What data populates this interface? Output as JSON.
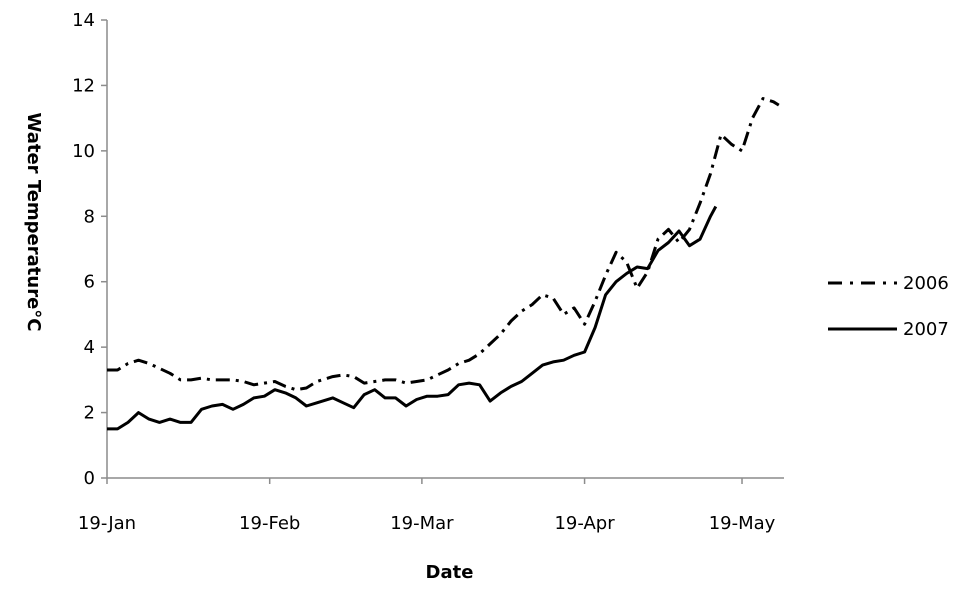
{
  "chart_data": {
    "type": "line",
    "title": "",
    "xlabel": "Date",
    "ylabel": "Water Temperature°C",
    "x_axis": {
      "type": "date",
      "range": [
        "2000-01-19",
        "2000-05-27"
      ],
      "ticks": [
        {
          "date": "2000-01-19",
          "label": "19-Jan"
        },
        {
          "date": "2000-02-19",
          "label": "19-Feb"
        },
        {
          "date": "2000-03-19",
          "label": "19-Mar"
        },
        {
          "date": "2000-04-19",
          "label": "19-Apr"
        },
        {
          "date": "2000-05-19",
          "label": "19-May"
        }
      ]
    },
    "y_axis": {
      "range": [
        0,
        14
      ],
      "ticks": [
        0,
        2,
        4,
        6,
        8,
        10,
        12,
        14
      ]
    },
    "grid": false,
    "legend": {
      "position": "right"
    },
    "series": [
      {
        "name": "2006",
        "style": "dash-dot",
        "color": "#000000",
        "points": [
          [
            "2000-01-19",
            3.3
          ],
          [
            "2000-01-21",
            3.3
          ],
          [
            "2000-01-23",
            3.5
          ],
          [
            "2000-01-25",
            3.6
          ],
          [
            "2000-01-27",
            3.5
          ],
          [
            "2000-01-29",
            3.35
          ],
          [
            "2000-01-31",
            3.2
          ],
          [
            "2000-02-02",
            3.0
          ],
          [
            "2000-02-04",
            3.0
          ],
          [
            "2000-02-06",
            3.05
          ],
          [
            "2000-02-08",
            3.0
          ],
          [
            "2000-02-10",
            3.0
          ],
          [
            "2000-02-12",
            3.0
          ],
          [
            "2000-02-14",
            2.95
          ],
          [
            "2000-02-16",
            2.85
          ],
          [
            "2000-02-18",
            2.9
          ],
          [
            "2000-02-20",
            2.95
          ],
          [
            "2000-02-22",
            2.8
          ],
          [
            "2000-02-24",
            2.7
          ],
          [
            "2000-02-26",
            2.75
          ],
          [
            "2000-02-28",
            2.95
          ],
          [
            "2000-03-02",
            3.1
          ],
          [
            "2000-03-04",
            3.15
          ],
          [
            "2000-03-06",
            3.1
          ],
          [
            "2000-03-08",
            2.9
          ],
          [
            "2000-03-10",
            2.95
          ],
          [
            "2000-03-12",
            3.0
          ],
          [
            "2000-03-14",
            3.0
          ],
          [
            "2000-03-16",
            2.9
          ],
          [
            "2000-03-18",
            2.95
          ],
          [
            "2000-03-20",
            3.0
          ],
          [
            "2000-03-22",
            3.15
          ],
          [
            "2000-03-24",
            3.3
          ],
          [
            "2000-03-26",
            3.5
          ],
          [
            "2000-03-28",
            3.6
          ],
          [
            "2000-03-30",
            3.8
          ],
          [
            "2000-04-01",
            4.1
          ],
          [
            "2000-04-03",
            4.4
          ],
          [
            "2000-04-05",
            4.8
          ],
          [
            "2000-04-07",
            5.1
          ],
          [
            "2000-04-09",
            5.3
          ],
          [
            "2000-04-11",
            5.6
          ],
          [
            "2000-04-13",
            5.5
          ],
          [
            "2000-04-15",
            5.0
          ],
          [
            "2000-04-17",
            5.2
          ],
          [
            "2000-04-19",
            4.7
          ],
          [
            "2000-04-21",
            5.4
          ],
          [
            "2000-04-23",
            6.2
          ],
          [
            "2000-04-25",
            6.9
          ],
          [
            "2000-04-27",
            6.6
          ],
          [
            "2000-04-29",
            5.8
          ],
          [
            "2000-05-01",
            6.3
          ],
          [
            "2000-05-03",
            7.3
          ],
          [
            "2000-05-05",
            7.6
          ],
          [
            "2000-05-07",
            7.2
          ],
          [
            "2000-05-09",
            7.6
          ],
          [
            "2000-05-11",
            8.4
          ],
          [
            "2000-05-13",
            9.3
          ],
          [
            "2000-05-15",
            10.5
          ],
          [
            "2000-05-17",
            10.2
          ],
          [
            "2000-05-19",
            10.0
          ],
          [
            "2000-05-21",
            11.0
          ],
          [
            "2000-05-23",
            11.6
          ],
          [
            "2000-05-25",
            11.5
          ],
          [
            "2000-05-26",
            11.4
          ]
        ]
      },
      {
        "name": "2007",
        "style": "solid",
        "color": "#000000",
        "points": [
          [
            "2000-01-19",
            1.5
          ],
          [
            "2000-01-21",
            1.5
          ],
          [
            "2000-01-23",
            1.7
          ],
          [
            "2000-01-25",
            2.0
          ],
          [
            "2000-01-27",
            1.8
          ],
          [
            "2000-01-29",
            1.7
          ],
          [
            "2000-01-31",
            1.8
          ],
          [
            "2000-02-02",
            1.7
          ],
          [
            "2000-02-04",
            1.7
          ],
          [
            "2000-02-06",
            2.1
          ],
          [
            "2000-02-08",
            2.2
          ],
          [
            "2000-02-10",
            2.25
          ],
          [
            "2000-02-12",
            2.1
          ],
          [
            "2000-02-14",
            2.25
          ],
          [
            "2000-02-16",
            2.45
          ],
          [
            "2000-02-18",
            2.5
          ],
          [
            "2000-02-20",
            2.7
          ],
          [
            "2000-02-22",
            2.6
          ],
          [
            "2000-02-24",
            2.45
          ],
          [
            "2000-02-26",
            2.2
          ],
          [
            "2000-02-28",
            2.3
          ],
          [
            "2000-03-02",
            2.45
          ],
          [
            "2000-03-04",
            2.3
          ],
          [
            "2000-03-06",
            2.15
          ],
          [
            "2000-03-08",
            2.55
          ],
          [
            "2000-03-10",
            2.7
          ],
          [
            "2000-03-12",
            2.45
          ],
          [
            "2000-03-14",
            2.45
          ],
          [
            "2000-03-16",
            2.2
          ],
          [
            "2000-03-18",
            2.4
          ],
          [
            "2000-03-20",
            2.5
          ],
          [
            "2000-03-22",
            2.5
          ],
          [
            "2000-03-24",
            2.55
          ],
          [
            "2000-03-26",
            2.85
          ],
          [
            "2000-03-28",
            2.9
          ],
          [
            "2000-03-30",
            2.85
          ],
          [
            "2000-04-01",
            2.35
          ],
          [
            "2000-04-03",
            2.6
          ],
          [
            "2000-04-05",
            2.8
          ],
          [
            "2000-04-07",
            2.95
          ],
          [
            "2000-04-09",
            3.2
          ],
          [
            "2000-04-11",
            3.45
          ],
          [
            "2000-04-13",
            3.55
          ],
          [
            "2000-04-15",
            3.6
          ],
          [
            "2000-04-17",
            3.75
          ],
          [
            "2000-04-19",
            3.85
          ],
          [
            "2000-04-21",
            4.6
          ],
          [
            "2000-04-23",
            5.6
          ],
          [
            "2000-04-25",
            6.0
          ],
          [
            "2000-04-27",
            6.25
          ],
          [
            "2000-04-29",
            6.45
          ],
          [
            "2000-05-01",
            6.4
          ],
          [
            "2000-05-03",
            6.95
          ],
          [
            "2000-05-05",
            7.2
          ],
          [
            "2000-05-07",
            7.55
          ],
          [
            "2000-05-09",
            7.1
          ],
          [
            "2000-05-11",
            7.3
          ],
          [
            "2000-05-13",
            8.0
          ],
          [
            "2000-05-14",
            8.3
          ]
        ]
      }
    ]
  }
}
